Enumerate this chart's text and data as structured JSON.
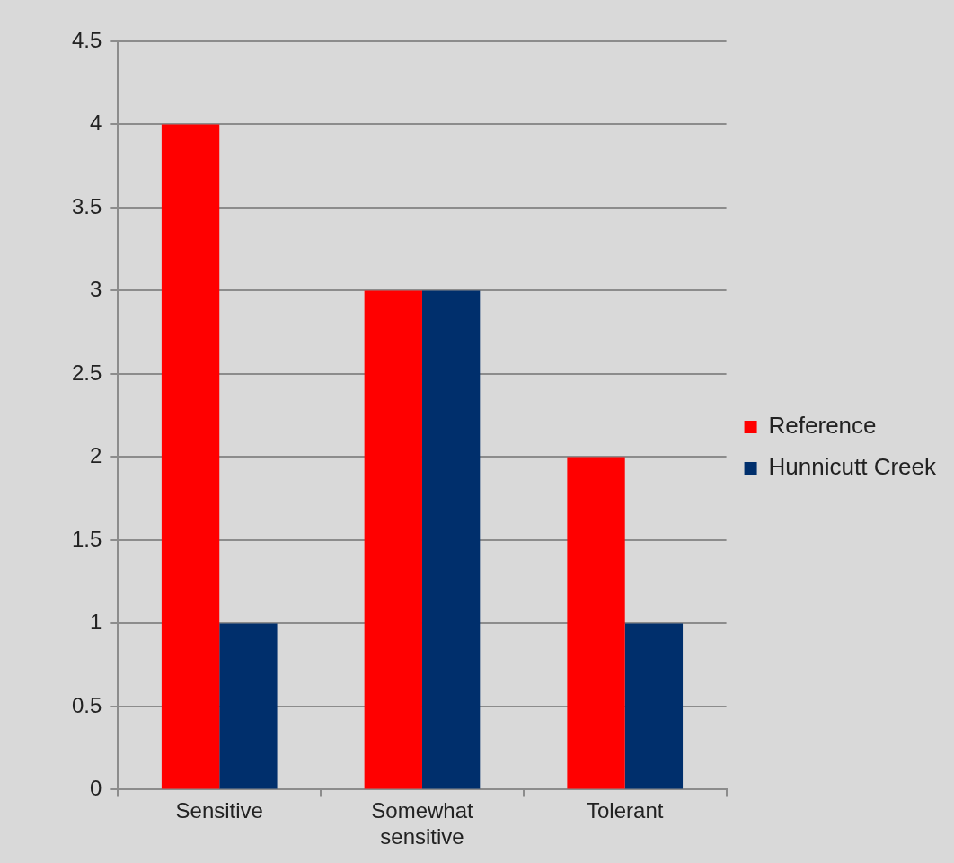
{
  "chart_data": {
    "type": "bar",
    "categories": [
      "Sensitive",
      "Somewhat sensitive",
      "Tolerant"
    ],
    "series": [
      {
        "name": "Reference",
        "color": "#ff0000",
        "values": [
          4,
          3,
          2
        ]
      },
      {
        "name": "Hunnicutt Creek",
        "color": "#002f6c",
        "values": [
          1,
          3,
          1
        ]
      }
    ],
    "ylim": [
      0,
      4.5
    ],
    "yticks": [
      0,
      0.5,
      1,
      1.5,
      2,
      2.5,
      3,
      3.5,
      4,
      4.5
    ],
    "grid": "y",
    "legend": "right"
  }
}
